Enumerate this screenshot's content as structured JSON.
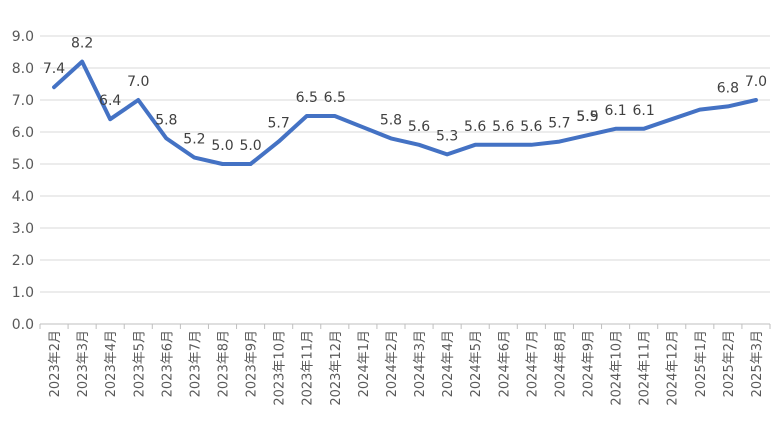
{
  "chart_data": {
    "type": "line",
    "title": "",
    "xlabel": "",
    "ylabel": "",
    "ylim": [
      0,
      9
    ],
    "y_ticks": [
      "0.0",
      "1.0",
      "2.0",
      "3.0",
      "4.0",
      "5.0",
      "6.0",
      "7.0",
      "8.0",
      "9.0"
    ],
    "x_tick_labels": [
      "2023年2月",
      "2023年3月",
      "2023年4月",
      "2023年5月",
      "2023年6月",
      "2023年7月",
      "2023年8月",
      "2023年9月",
      "2023年10月",
      "2023年11月",
      "2023年12月",
      "2024年1月",
      "2024年2月",
      "2024年3月",
      "2024年4月",
      "2024年5月",
      "2024年6月",
      "2024年7月",
      "2024年8月",
      "2024年9月",
      "2024年10月",
      "2024年11月",
      "2024年12月",
      "2025年1月",
      "2025年2月",
      "2025年3月"
    ],
    "categories": [
      "2023年2月",
      "2023年3月",
      "2023年4月",
      "2023年5月",
      "2023年6月",
      "2023年7月",
      "2023年8月",
      "2023年9月",
      "2023年10月",
      "2023年11月",
      "2023年12月",
      "2024年1月",
      "2024年2月",
      "2024年3月",
      "2024年4月",
      "2024年5月",
      "2024年6月",
      "2024年7月",
      "2024年8月",
      "2024年9月",
      "2024年10月",
      "2024年11月",
      "2024年12月",
      "2025年1月",
      "2025年2月",
      "2025年3月"
    ],
    "series": [
      {
        "values": [
          7.4,
          8.2,
          6.4,
          7.0,
          5.8,
          5.2,
          5.0,
          5.0,
          5.7,
          6.5,
          6.5,
          6.15,
          5.8,
          5.6,
          5.3,
          5.6,
          5.6,
          5.6,
          5.7,
          5.9,
          6.1,
          6.1,
          6.4,
          6.7,
          6.8,
          7.0
        ],
        "data_labels": [
          "7.4",
          "8.2",
          "6.4",
          "7.0",
          "5.8",
          "5.2",
          "5.0",
          "5.0",
          "5.7",
          "6.5",
          "6.5",
          "",
          "5.8",
          "5.6",
          "5.3",
          "5.6",
          "5.6",
          "5.6",
          "5.7",
          "5.9",
          "6.1",
          "6.1",
          "",
          "",
          "6.8",
          "7.0"
        ],
        "color": "#4472c4"
      }
    ],
    "extra_labels": [
      {
        "after_category": "2024年8月",
        "text": "5.5"
      }
    ],
    "grid": true,
    "legend": "none"
  }
}
